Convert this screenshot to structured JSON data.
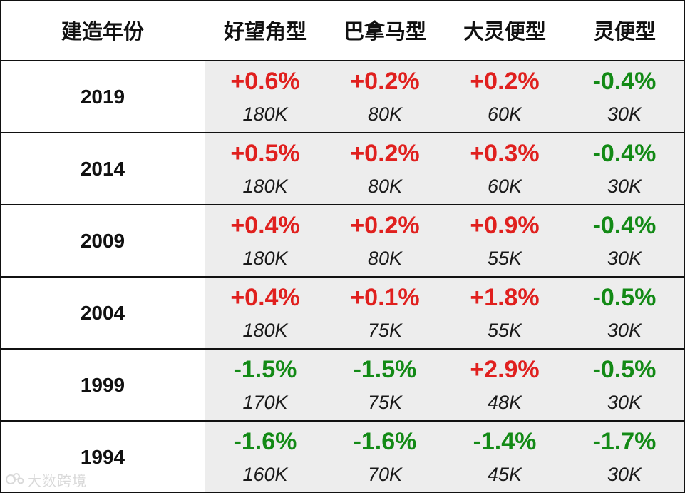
{
  "colors": {
    "up": "#e0201e",
    "down": "#138a16",
    "grid": "#111111",
    "shade": "#ededed"
  },
  "chart_data": {
    "type": "table",
    "columns": [
      "建造年份",
      "好望角型",
      "巴拿马型",
      "大灵便型",
      "灵便型"
    ],
    "rows": [
      {
        "year": "2019",
        "cells": [
          {
            "pct": "+0.6%",
            "vol": "180K",
            "dir": "up"
          },
          {
            "pct": "+0.2%",
            "vol": "80K",
            "dir": "up"
          },
          {
            "pct": "+0.2%",
            "vol": "60K",
            "dir": "up"
          },
          {
            "pct": "-0.4%",
            "vol": "30K",
            "dir": "down"
          }
        ]
      },
      {
        "year": "2014",
        "cells": [
          {
            "pct": "+0.5%",
            "vol": "180K",
            "dir": "up"
          },
          {
            "pct": "+0.2%",
            "vol": "80K",
            "dir": "up"
          },
          {
            "pct": "+0.3%",
            "vol": "60K",
            "dir": "up"
          },
          {
            "pct": "-0.4%",
            "vol": "30K",
            "dir": "down"
          }
        ]
      },
      {
        "year": "2009",
        "cells": [
          {
            "pct": "+0.4%",
            "vol": "180K",
            "dir": "up"
          },
          {
            "pct": "+0.2%",
            "vol": "80K",
            "dir": "up"
          },
          {
            "pct": "+0.9%",
            "vol": "55K",
            "dir": "up"
          },
          {
            "pct": "-0.4%",
            "vol": "30K",
            "dir": "down"
          }
        ]
      },
      {
        "year": "2004",
        "cells": [
          {
            "pct": "+0.4%",
            "vol": "180K",
            "dir": "up"
          },
          {
            "pct": "+0.1%",
            "vol": "75K",
            "dir": "up"
          },
          {
            "pct": "+1.8%",
            "vol": "55K",
            "dir": "up"
          },
          {
            "pct": "-0.5%",
            "vol": "30K",
            "dir": "down"
          }
        ]
      },
      {
        "year": "1999",
        "cells": [
          {
            "pct": "-1.5%",
            "vol": "170K",
            "dir": "down"
          },
          {
            "pct": "-1.5%",
            "vol": "75K",
            "dir": "down"
          },
          {
            "pct": "+2.9%",
            "vol": "48K",
            "dir": "up"
          },
          {
            "pct": "-0.5%",
            "vol": "30K",
            "dir": "down"
          }
        ]
      },
      {
        "year": "1994",
        "cells": [
          {
            "pct": "-1.6%",
            "vol": "160K",
            "dir": "down"
          },
          {
            "pct": "-1.6%",
            "vol": "70K",
            "dir": "down"
          },
          {
            "pct": "-1.4%",
            "vol": "45K",
            "dir": "down"
          },
          {
            "pct": "-1.7%",
            "vol": "30K",
            "dir": "down"
          }
        ]
      }
    ]
  },
  "watermark": {
    "text": "大数跨境",
    "icon": "logo-icon"
  }
}
